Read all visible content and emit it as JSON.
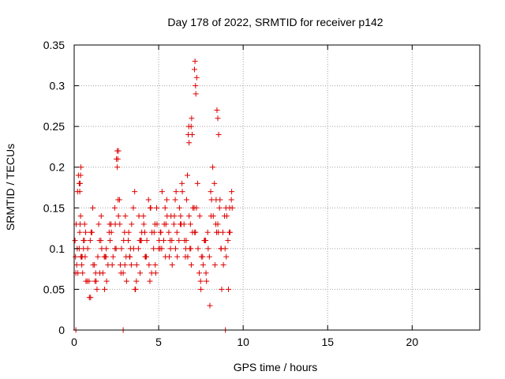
{
  "chart_data": {
    "type": "scatter",
    "title": "Day 178 of 2022, SRMTID for receiver p142",
    "xlabel": "GPS time / hours",
    "ylabel": "SRMTID / TECUs",
    "xlim": [
      0,
      24
    ],
    "ylim": [
      0,
      0.35
    ],
    "x_ticks": [
      0,
      5,
      10,
      15,
      20
    ],
    "x_tick_labels": [
      "0",
      "5",
      "10",
      "15",
      "20"
    ],
    "y_ticks": [
      0,
      0.05,
      0.1,
      0.15,
      0.2,
      0.25,
      0.3,
      0.35
    ],
    "y_tick_labels": [
      "0",
      "0.05",
      "0.1",
      "0.15",
      "0.2",
      "0.25",
      "0.3",
      "0.35"
    ],
    "grid": true,
    "marker": "+",
    "color": "#dd0000",
    "series": [
      {
        "name": "SRMTID",
        "x": [
          0.05,
          0.1,
          0.15,
          0.2,
          0.25,
          0.3,
          0.35,
          0.4,
          0.45,
          0.5,
          0.55,
          0.6,
          0.65,
          0.7,
          0.8,
          0.9,
          1.0,
          1.1,
          1.2,
          1.3,
          1.4,
          1.5,
          1.6,
          1.7,
          1.8,
          1.9,
          2.0,
          2.1,
          2.2,
          2.3,
          2.4,
          2.5,
          2.55,
          2.6,
          2.7,
          2.8,
          2.9,
          3.0,
          3.1,
          3.2,
          3.3,
          3.4,
          3.5,
          3.6,
          3.7,
          3.8,
          3.9,
          4.0,
          4.1,
          4.2,
          4.3,
          4.4,
          4.5,
          4.6,
          4.7,
          4.8,
          4.9,
          5.0,
          5.1,
          5.2,
          5.3,
          5.4,
          5.5,
          5.6,
          5.7,
          5.8,
          5.9,
          6.0,
          6.1,
          6.2,
          6.3,
          6.4,
          6.5,
          6.6,
          6.65,
          6.7,
          6.8,
          6.9,
          7.0,
          7.1,
          7.2,
          7.25,
          7.3,
          7.4,
          7.5,
          7.6,
          7.7,
          7.8,
          7.9,
          8.0,
          8.1,
          8.2,
          8.3,
          8.4,
          8.5,
          8.6,
          8.7,
          8.8,
          8.9,
          9.0,
          9.1,
          9.2,
          0.12,
          0.22,
          0.33,
          0.47,
          0.62,
          0.78,
          0.95,
          1.12,
          1.27,
          1.45,
          1.63,
          1.78,
          1.92,
          2.07,
          2.25,
          2.42,
          2.62,
          2.77,
          2.93,
          3.07,
          3.23,
          3.38,
          3.52,
          3.68,
          3.83,
          3.97,
          4.12,
          4.27,
          4.43,
          4.58,
          4.73,
          4.88,
          5.03,
          5.18,
          5.33,
          5.48,
          5.63,
          5.78,
          5.93,
          6.08,
          6.23,
          6.38,
          6.53,
          6.72,
          6.88,
          7.03,
          7.18,
          7.33,
          7.48,
          7.63,
          7.78,
          7.93,
          8.08,
          8.23,
          8.38,
          8.53,
          8.68,
          8.83,
          8.98,
          9.13,
          0.18,
          0.42,
          0.68,
          0.97,
          1.23,
          1.52,
          1.83,
          2.12,
          2.43,
          2.73,
          3.03,
          3.33,
          3.63,
          3.93,
          4.23,
          4.53,
          4.83,
          5.13,
          5.43,
          5.73,
          6.03,
          6.33,
          6.63,
          6.93,
          7.23,
          7.53,
          7.83,
          8.13,
          8.43,
          8.73,
          9.03,
          9.22,
          0.08,
          0.38,
          0.55,
          0.88,
          1.05,
          1.35,
          1.58,
          1.88,
          2.18,
          2.48,
          2.68,
          2.98,
          3.28,
          3.58,
          3.88,
          4.18,
          4.48,
          4.78,
          5.08,
          5.38,
          5.68,
          5.98,
          6.28,
          6.58,
          6.85,
          7.13,
          7.43,
          7.73,
          8.03,
          8.33,
          8.63,
          8.93,
          9.18,
          2.55,
          2.58,
          2.62,
          6.92,
          6.95,
          6.98,
          7.12,
          7.15,
          7.18,
          8.45,
          8.5,
          8.55,
          9.3,
          9.32,
          9.35,
          0.35,
          0.38,
          0.4,
          0.3,
          0.33,
          6.75,
          6.78,
          6.8
        ],
        "y": [
          0.11,
          0.07,
          0.08,
          0.17,
          0.19,
          0.1,
          0.13,
          0.09,
          0.08,
          0.07,
          0.1,
          0.11,
          0.09,
          0.06,
          0.1,
          0.04,
          0.12,
          0.15,
          0.08,
          0.06,
          0.09,
          0.11,
          0.14,
          0.07,
          0.05,
          0.1,
          0.08,
          0.13,
          0.12,
          0.09,
          0.15,
          0.21,
          0.22,
          0.16,
          0.13,
          0.1,
          0.07,
          0.08,
          0.06,
          0.11,
          0.09,
          0.13,
          0.15,
          0.05,
          0.08,
          0.1,
          0.07,
          0.12,
          0.14,
          0.09,
          0.11,
          0.16,
          0.15,
          0.12,
          0.1,
          0.08,
          0.13,
          0.1,
          0.12,
          0.17,
          0.11,
          0.09,
          0.14,
          0.12,
          0.1,
          0.08,
          0.13,
          0.1,
          0.09,
          0.11,
          0.14,
          0.17,
          0.13,
          0.1,
          0.16,
          0.19,
          0.14,
          0.1,
          0.12,
          0.15,
          0.29,
          0.31,
          0.18,
          0.07,
          0.05,
          0.09,
          0.11,
          0.07,
          0.12,
          0.09,
          0.14,
          0.2,
          0.18,
          0.16,
          0.13,
          0.15,
          0.1,
          0.12,
          0.14,
          0.09,
          0.11,
          0.15,
          0.13,
          0.07,
          0.12,
          0.09,
          0.13,
          0.06,
          0.11,
          0.08,
          0.07,
          0.13,
          0.1,
          0.09,
          0.06,
          0.12,
          0.08,
          0.1,
          0.14,
          0.07,
          0.11,
          0.09,
          0.12,
          0.08,
          0.1,
          0.06,
          0.14,
          0.11,
          0.13,
          0.09,
          0.08,
          0.07,
          0.12,
          0.15,
          0.11,
          0.1,
          0.13,
          0.16,
          0.09,
          0.11,
          0.14,
          0.12,
          0.15,
          0.18,
          0.11,
          0.09,
          0.13,
          0.15,
          0.12,
          0.1,
          0.06,
          0.08,
          0.11,
          0.1,
          0.17,
          0.14,
          0.13,
          0.12,
          0.1,
          0.08,
          0.15,
          0.05,
          0.1,
          0.09,
          0.12,
          0.04,
          0.06,
          0.07,
          0.09,
          0.11,
          0.13,
          0.08,
          0.14,
          0.1,
          0.05,
          0.11,
          0.09,
          0.15,
          0.07,
          0.12,
          0.13,
          0.14,
          0.17,
          0.13,
          0.11,
          0.08,
          0.15,
          0.09,
          0.06,
          0.16,
          0.12,
          0.05,
          0.14,
          0.12,
          0.09,
          0.14,
          0.11,
          0.06,
          0.12,
          0.05,
          0.11,
          0.09,
          0.13,
          0.1,
          0.16,
          0.12,
          0.09,
          0.17,
          0.11,
          0.12,
          0.06,
          0.13,
          0.1,
          0.15,
          0.11,
          0.16,
          0.13,
          0.09,
          0.1,
          0.12,
          0.14,
          0.11,
          0.03,
          0.08,
          0.16,
          0.1,
          0.12,
          0.2,
          0.21,
          0.22,
          0.25,
          0.26,
          0.24,
          0.32,
          0.33,
          0.3,
          0.27,
          0.26,
          0.24,
          0.16,
          0.17,
          0.15,
          0.18,
          0.19,
          0.2,
          0.18,
          0.17,
          0.24,
          0.25,
          0.23
        ],
        "zero_x": [
          0.1,
          2.9,
          8.95
        ]
      }
    ]
  }
}
